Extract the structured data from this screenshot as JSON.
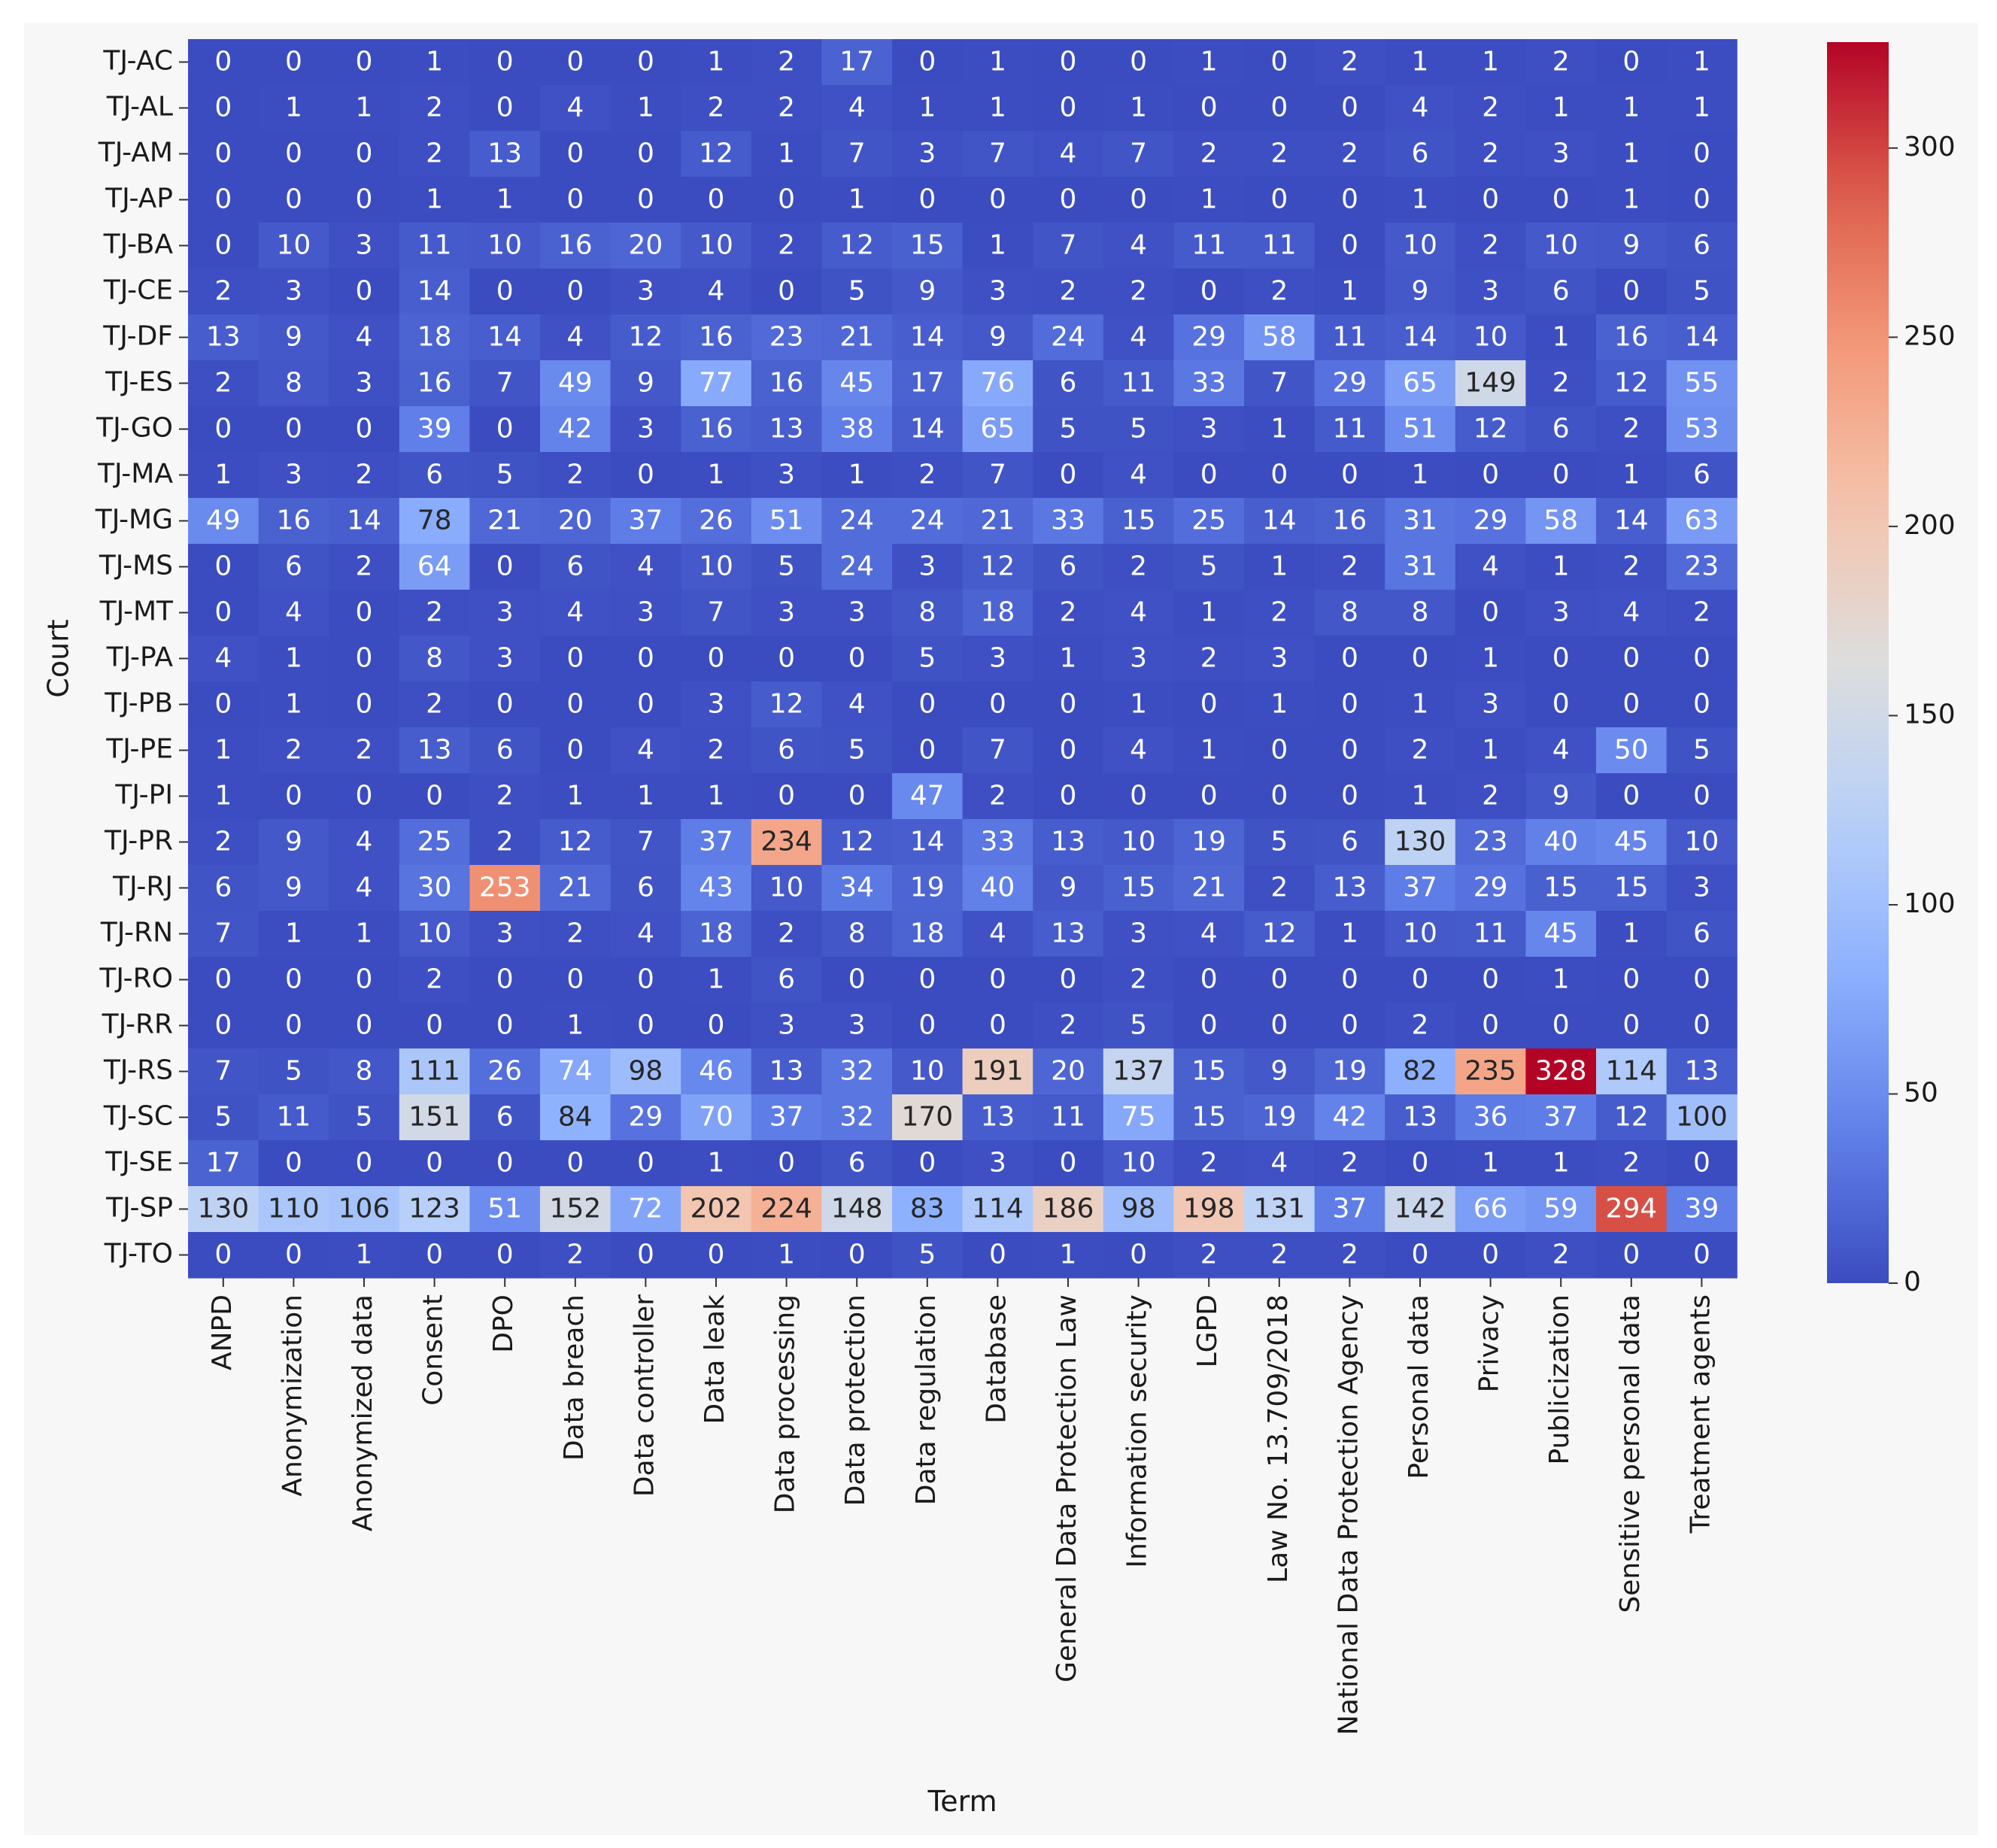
{
  "chart_data": {
    "type": "heatmap",
    "title": "",
    "xlabel": "Term",
    "ylabel": "Court",
    "colormap": "coolwarm",
    "vmin": 0,
    "vmax": 328,
    "colorbar_ticks": [
      0,
      50,
      100,
      150,
      200,
      250,
      300
    ],
    "rows": [
      "TJ-AC",
      "TJ-AL",
      "TJ-AM",
      "TJ-AP",
      "TJ-BA",
      "TJ-CE",
      "TJ-DF",
      "TJ-ES",
      "TJ-GO",
      "TJ-MA",
      "TJ-MG",
      "TJ-MS",
      "TJ-MT",
      "TJ-PA",
      "TJ-PB",
      "TJ-PE",
      "TJ-PI",
      "TJ-PR",
      "TJ-RJ",
      "TJ-RN",
      "TJ-RO",
      "TJ-RR",
      "TJ-RS",
      "TJ-SC",
      "TJ-SE",
      "TJ-SP",
      "TJ-TO"
    ],
    "columns": [
      "ANPD",
      "Anonymization",
      "Anonymized data",
      "Consent",
      "DPO",
      "Data breach",
      "Data controller",
      "Data leak",
      "Data processing",
      "Data protection",
      "Data regulation",
      "Database",
      "General Data Protection Law",
      "Information security",
      "LGPD",
      "Law No. 13.709/2018",
      "National Data Protection Agency",
      "Personal data",
      "Privacy",
      "Publicization",
      "Sensitive personal data",
      "Treatment agents"
    ],
    "values": [
      [
        0,
        0,
        0,
        1,
        0,
        0,
        0,
        1,
        2,
        17,
        0,
        1,
        0,
        0,
        1,
        0,
        2,
        1,
        1,
        2,
        0,
        1
      ],
      [
        0,
        1,
        1,
        2,
        0,
        4,
        1,
        2,
        2,
        4,
        1,
        1,
        0,
        1,
        0,
        0,
        0,
        4,
        2,
        1,
        1,
        1
      ],
      [
        0,
        0,
        0,
        2,
        13,
        0,
        0,
        12,
        1,
        7,
        3,
        7,
        4,
        7,
        2,
        2,
        2,
        6,
        2,
        3,
        1,
        0
      ],
      [
        0,
        0,
        0,
        1,
        1,
        0,
        0,
        0,
        0,
        1,
        0,
        0,
        0,
        0,
        1,
        0,
        0,
        1,
        0,
        0,
        1,
        0
      ],
      [
        0,
        10,
        3,
        11,
        10,
        16,
        20,
        10,
        2,
        12,
        15,
        1,
        7,
        4,
        11,
        11,
        0,
        10,
        2,
        10,
        9,
        6
      ],
      [
        2,
        3,
        0,
        14,
        0,
        0,
        3,
        4,
        0,
        5,
        9,
        3,
        2,
        2,
        0,
        2,
        1,
        9,
        3,
        6,
        0,
        5
      ],
      [
        13,
        9,
        4,
        18,
        14,
        4,
        12,
        16,
        23,
        21,
        14,
        9,
        24,
        4,
        29,
        58,
        11,
        14,
        10,
        1,
        16,
        14
      ],
      [
        2,
        8,
        3,
        16,
        7,
        49,
        9,
        77,
        16,
        45,
        17,
        76,
        6,
        11,
        33,
        7,
        29,
        65,
        149,
        2,
        12,
        55
      ],
      [
        0,
        0,
        0,
        39,
        0,
        42,
        3,
        16,
        13,
        38,
        14,
        65,
        5,
        5,
        3,
        1,
        11,
        51,
        12,
        6,
        2,
        53
      ],
      [
        1,
        3,
        2,
        6,
        5,
        2,
        0,
        1,
        3,
        1,
        2,
        7,
        0,
        4,
        0,
        0,
        0,
        1,
        0,
        0,
        1,
        6
      ],
      [
        49,
        16,
        14,
        78,
        21,
        20,
        37,
        26,
        51,
        24,
        24,
        21,
        33,
        15,
        25,
        14,
        16,
        31,
        29,
        58,
        14,
        63
      ],
      [
        0,
        6,
        2,
        64,
        0,
        6,
        4,
        10,
        5,
        24,
        3,
        12,
        6,
        2,
        5,
        1,
        2,
        31,
        4,
        1,
        2,
        23
      ],
      [
        0,
        4,
        0,
        2,
        3,
        4,
        3,
        7,
        3,
        3,
        8,
        18,
        2,
        4,
        1,
        2,
        8,
        8,
        0,
        3,
        4,
        2
      ],
      [
        4,
        1,
        0,
        8,
        3,
        0,
        0,
        0,
        0,
        0,
        5,
        3,
        1,
        3,
        2,
        3,
        0,
        0,
        1,
        0,
        0,
        0
      ],
      [
        0,
        1,
        0,
        2,
        0,
        0,
        0,
        3,
        12,
        4,
        0,
        0,
        0,
        1,
        0,
        1,
        0,
        1,
        3,
        0,
        0,
        0
      ],
      [
        1,
        2,
        2,
        13,
        6,
        0,
        4,
        2,
        6,
        5,
        0,
        7,
        0,
        4,
        1,
        0,
        0,
        2,
        1,
        4,
        50,
        5
      ],
      [
        1,
        0,
        0,
        0,
        2,
        1,
        1,
        1,
        0,
        0,
        47,
        2,
        0,
        0,
        0,
        0,
        0,
        1,
        2,
        9,
        0,
        0
      ],
      [
        2,
        9,
        4,
        25,
        2,
        12,
        7,
        37,
        234,
        12,
        14,
        33,
        13,
        10,
        19,
        5,
        6,
        130,
        23,
        40,
        45,
        10
      ],
      [
        6,
        9,
        4,
        30,
        253,
        21,
        6,
        43,
        10,
        34,
        19,
        40,
        9,
        15,
        21,
        2,
        13,
        37,
        29,
        15,
        15,
        3
      ],
      [
        7,
        1,
        1,
        10,
        3,
        2,
        4,
        18,
        2,
        8,
        18,
        4,
        13,
        3,
        4,
        12,
        1,
        10,
        11,
        45,
        1,
        6
      ],
      [
        0,
        0,
        0,
        2,
        0,
        0,
        0,
        1,
        6,
        0,
        0,
        0,
        0,
        2,
        0,
        0,
        0,
        0,
        0,
        1,
        0,
        0
      ],
      [
        0,
        0,
        0,
        0,
        0,
        1,
        0,
        0,
        3,
        3,
        0,
        0,
        2,
        5,
        0,
        0,
        0,
        2,
        0,
        0,
        0,
        0
      ],
      [
        7,
        5,
        8,
        111,
        26,
        74,
        98,
        46,
        13,
        32,
        10,
        191,
        20,
        137,
        15,
        9,
        19,
        82,
        235,
        328,
        114,
        13
      ],
      [
        5,
        11,
        5,
        151,
        6,
        84,
        29,
        70,
        37,
        32,
        170,
        13,
        11,
        75,
        15,
        19,
        42,
        13,
        36,
        37,
        12,
        100
      ],
      [
        17,
        0,
        0,
        0,
        0,
        0,
        0,
        1,
        0,
        6,
        0,
        3,
        0,
        10,
        2,
        4,
        2,
        0,
        1,
        1,
        2,
        0
      ],
      [
        130,
        110,
        106,
        123,
        51,
        152,
        72,
        202,
        224,
        148,
        83,
        114,
        186,
        98,
        198,
        131,
        37,
        142,
        66,
        59,
        294,
        39
      ],
      [
        0,
        0,
        1,
        0,
        0,
        2,
        0,
        0,
        1,
        0,
        5,
        0,
        1,
        0,
        2,
        2,
        2,
        0,
        0,
        2,
        0,
        0
      ]
    ]
  }
}
